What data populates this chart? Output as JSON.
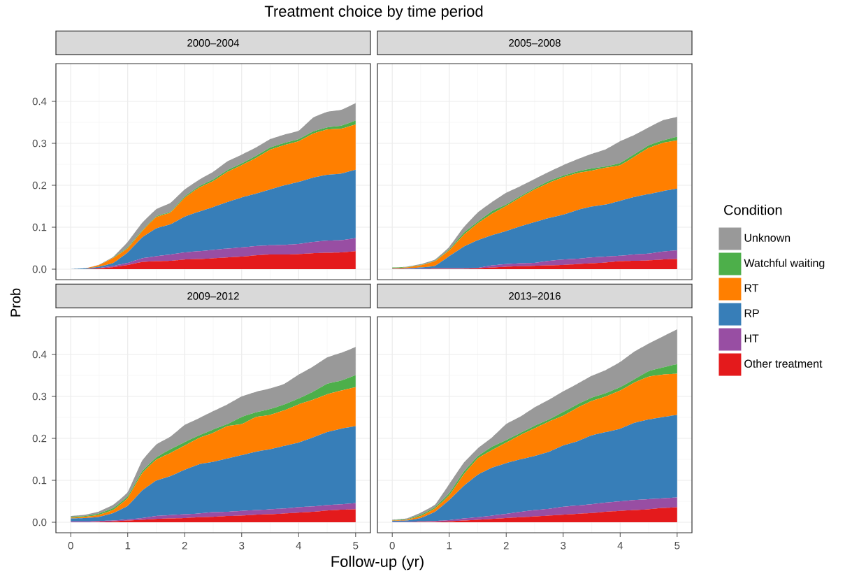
{
  "chart_data": [
    {
      "type": "area",
      "stacked": true,
      "title": "2000–2004",
      "annotations": [
        "Treatment choice by time period"
      ],
      "xlabel": "Follow-up (yr)",
      "ylabel": "Prob",
      "legend_title": "Condition",
      "legend": "right",
      "grid": true,
      "tick_labels": "y",
      "xlim": [
        -0.26,
        5.26
      ],
      "ylim": [
        -0.025,
        0.49
      ],
      "xticks": [
        0,
        1,
        2,
        3,
        4,
        5
      ],
      "yticks": [
        {
          "value": 0,
          "label": "0.0"
        },
        {
          "value": 0.1,
          "label": "0.1"
        },
        {
          "value": 0.2,
          "label": "0.2"
        },
        {
          "value": 0.3,
          "label": "0.3"
        },
        {
          "value": 0.4,
          "label": "0.4"
        }
      ],
      "x": [
        0,
        0.25,
        0.5,
        0.75,
        1,
        1.25,
        1.5,
        1.75,
        2,
        2.25,
        2.5,
        2.75,
        3,
        3.25,
        3.5,
        3.75,
        4,
        4.25,
        4.5,
        4.75,
        5
      ],
      "series": [
        {
          "name": "Other treatment",
          "color": "#e41a1c",
          "values": [
            0,
            0,
            0.002,
            0.005,
            0.01,
            0.017,
            0.019,
            0.02,
            0.023,
            0.024,
            0.026,
            0.028,
            0.03,
            0.033,
            0.035,
            0.035,
            0.036,
            0.038,
            0.039,
            0.04,
            0.043
          ]
        },
        {
          "name": "HT",
          "color": "#984ea3",
          "values": [
            0,
            0,
            0.001,
            0.003,
            0.005,
            0.009,
            0.012,
            0.015,
            0.017,
            0.019,
            0.02,
            0.021,
            0.022,
            0.022,
            0.022,
            0.023,
            0.024,
            0.027,
            0.029,
            0.029,
            0.031
          ]
        },
        {
          "name": "RP",
          "color": "#377eb8",
          "values": [
            0,
            0.002,
            0.003,
            0.007,
            0.025,
            0.049,
            0.066,
            0.072,
            0.085,
            0.094,
            0.102,
            0.111,
            0.119,
            0.125,
            0.133,
            0.142,
            0.148,
            0.153,
            0.157,
            0.159,
            0.163
          ]
        },
        {
          "name": "RT",
          "color": "#ff7f00",
          "values": [
            0,
            0,
            0.004,
            0.012,
            0.01,
            0.015,
            0.027,
            0.028,
            0.045,
            0.057,
            0.062,
            0.072,
            0.077,
            0.085,
            0.095,
            0.096,
            0.097,
            0.105,
            0.108,
            0.107,
            0.108
          ]
        },
        {
          "name": "Watchful waiting",
          "color": "#4daf4a",
          "values": [
            0,
            0,
            0,
            0.001,
            0.002,
            0.002,
            0.002,
            0.002,
            0.003,
            0.003,
            0.004,
            0.004,
            0.004,
            0.005,
            0.005,
            0.005,
            0.005,
            0.005,
            0.005,
            0.007,
            0.009
          ]
        },
        {
          "name": "Unknown",
          "color": "#999999",
          "values": [
            0,
            0,
            0.001,
            0.002,
            0.013,
            0.018,
            0.017,
            0.021,
            0.017,
            0.016,
            0.018,
            0.021,
            0.021,
            0.02,
            0.02,
            0.02,
            0.02,
            0.033,
            0.037,
            0.038,
            0.042
          ]
        }
      ]
    },
    {
      "type": "area",
      "stacked": true,
      "title": "2005–2008",
      "grid": true,
      "tick_labels": false,
      "xlim": [
        -0.26,
        5.26
      ],
      "ylim": [
        -0.025,
        0.49
      ],
      "xticks": [
        0,
        1,
        2,
        3,
        4,
        5
      ],
      "yticks": [
        {
          "value": 0,
          "label": null
        },
        {
          "value": 0.1,
          "label": null
        },
        {
          "value": 0.2,
          "label": null
        },
        {
          "value": 0.3,
          "label": null
        },
        {
          "value": 0.4,
          "label": null
        }
      ],
      "x": [
        0,
        0.25,
        0.5,
        0.75,
        1,
        1.25,
        1.5,
        1.75,
        2,
        2.25,
        2.5,
        2.75,
        3,
        3.25,
        3.5,
        3.75,
        4,
        4.25,
        4.5,
        4.75,
        5
      ],
      "series": [
        {
          "color": "#e41a1c",
          "values": [
            0,
            0,
            0,
            0.001,
            0.001,
            0.001,
            0.002,
            0.004,
            0.006,
            0.007,
            0.008,
            0.009,
            0.01,
            0.012,
            0.014,
            0.016,
            0.019,
            0.02,
            0.021,
            0.023,
            0.024
          ]
        },
        {
          "color": "#984ea3",
          "values": [
            0.001,
            0.001,
            0.001,
            0.001,
            0.001,
            0.001,
            0.001,
            0.005,
            0.006,
            0.007,
            0.007,
            0.011,
            0.013,
            0.013,
            0.014,
            0.014,
            0.013,
            0.015,
            0.016,
            0.019,
            0.021
          ]
        },
        {
          "color": "#377eb8",
          "values": [
            0,
            0.001,
            0.003,
            0.006,
            0.029,
            0.051,
            0.066,
            0.072,
            0.079,
            0.088,
            0.097,
            0.102,
            0.107,
            0.116,
            0.121,
            0.124,
            0.131,
            0.137,
            0.142,
            0.144,
            0.147
          ]
        },
        {
          "color": "#ff7f00",
          "values": [
            0.001,
            0.002,
            0.005,
            0.011,
            0.014,
            0.028,
            0.04,
            0.051,
            0.06,
            0.069,
            0.078,
            0.084,
            0.089,
            0.088,
            0.086,
            0.088,
            0.085,
            0.096,
            0.11,
            0.115,
            0.115
          ]
        },
        {
          "color": "#4daf4a",
          "values": [
            0.002,
            0.001,
            0.001,
            0.001,
            0.002,
            0.005,
            0.004,
            0.006,
            0.003,
            0.003,
            0.003,
            0.004,
            0.004,
            0.004,
            0.005,
            0.003,
            0.005,
            0.006,
            0.006,
            0.006,
            0.009
          ]
        },
        {
          "color": "#999999",
          "values": [
            0,
            0.001,
            0.002,
            0.003,
            0.006,
            0.013,
            0.022,
            0.022,
            0.028,
            0.024,
            0.022,
            0.022,
            0.025,
            0.029,
            0.035,
            0.041,
            0.052,
            0.046,
            0.043,
            0.048,
            0.047
          ]
        }
      ]
    },
    {
      "type": "area",
      "stacked": true,
      "title": "2009–2012",
      "grid": true,
      "xlim": [
        -0.26,
        5.26
      ],
      "ylim": [
        -0.025,
        0.49
      ],
      "xticks": [
        0,
        1,
        2,
        3,
        4,
        5
      ],
      "yticks": [
        {
          "value": 0,
          "label": "0.0"
        },
        {
          "value": 0.1,
          "label": "0.1"
        },
        {
          "value": 0.2,
          "label": "0.2"
        },
        {
          "value": 0.3,
          "label": "0.3"
        },
        {
          "value": 0.4,
          "label": "0.4"
        }
      ],
      "x": [
        0,
        0.25,
        0.5,
        0.75,
        1,
        1.25,
        1.5,
        1.75,
        2,
        2.25,
        2.5,
        2.75,
        3,
        3.25,
        3.5,
        3.75,
        4,
        4.25,
        4.5,
        4.75,
        5
      ],
      "series": [
        {
          "color": "#e41a1c",
          "values": [
            0,
            0,
            0.001,
            0.002,
            0.004,
            0.006,
            0.008,
            0.009,
            0.01,
            0.012,
            0.013,
            0.015,
            0.016,
            0.018,
            0.019,
            0.021,
            0.023,
            0.025,
            0.028,
            0.03,
            0.031
          ]
        },
        {
          "color": "#984ea3",
          "values": [
            0.002,
            0.002,
            0.002,
            0.002,
            0.003,
            0.004,
            0.007,
            0.008,
            0.009,
            0.009,
            0.011,
            0.01,
            0.011,
            0.011,
            0.012,
            0.012,
            0.013,
            0.013,
            0.013,
            0.013,
            0.015
          ]
        },
        {
          "color": "#377eb8",
          "values": [
            0.007,
            0.008,
            0.01,
            0.018,
            0.032,
            0.065,
            0.084,
            0.093,
            0.106,
            0.117,
            0.12,
            0.127,
            0.133,
            0.139,
            0.143,
            0.149,
            0.154,
            0.164,
            0.174,
            0.18,
            0.183
          ]
        },
        {
          "color": "#ff7f00",
          "values": [
            0.002,
            0.003,
            0.005,
            0.008,
            0.019,
            0.041,
            0.05,
            0.055,
            0.058,
            0.063,
            0.069,
            0.077,
            0.074,
            0.083,
            0.082,
            0.085,
            0.091,
            0.09,
            0.09,
            0.091,
            0.093
          ]
        },
        {
          "color": "#4daf4a",
          "values": [
            0.002,
            0.002,
            0.003,
            0.004,
            0.004,
            0.005,
            0.005,
            0.009,
            0.008,
            0.006,
            0.008,
            0.005,
            0.017,
            0.011,
            0.014,
            0.014,
            0.014,
            0.019,
            0.025,
            0.024,
            0.029
          ]
        },
        {
          "color": "#999999",
          "values": [
            0.002,
            0.003,
            0.005,
            0.008,
            0.01,
            0.025,
            0.031,
            0.03,
            0.041,
            0.041,
            0.044,
            0.047,
            0.049,
            0.049,
            0.049,
            0.049,
            0.057,
            0.06,
            0.063,
            0.066,
            0.067
          ]
        }
      ]
    },
    {
      "type": "area",
      "stacked": true,
      "title": "2013–2016",
      "grid": true,
      "tick_labels": "x",
      "xlim": [
        -0.26,
        5.26
      ],
      "ylim": [
        -0.025,
        0.49
      ],
      "xticks": [
        0,
        1,
        2,
        3,
        4,
        5
      ],
      "yticks": [
        {
          "value": 0,
          "label": null
        },
        {
          "value": 0.1,
          "label": null
        },
        {
          "value": 0.2,
          "label": null
        },
        {
          "value": 0.3,
          "label": null
        },
        {
          "value": 0.4,
          "label": null
        }
      ],
      "x": [
        0,
        0.25,
        0.5,
        0.75,
        1,
        1.25,
        1.5,
        1.75,
        2,
        2.25,
        2.5,
        2.75,
        3,
        3.25,
        3.5,
        3.75,
        4,
        4.25,
        4.5,
        4.75,
        5
      ],
      "series": [
        {
          "color": "#e41a1c",
          "values": [
            0,
            0,
            0.001,
            0.001,
            0.002,
            0.004,
            0.006,
            0.008,
            0.01,
            0.012,
            0.014,
            0.016,
            0.018,
            0.02,
            0.022,
            0.025,
            0.027,
            0.029,
            0.031,
            0.034,
            0.036
          ]
        },
        {
          "color": "#984ea3",
          "values": [
            0.001,
            0.001,
            0.001,
            0.002,
            0.003,
            0.005,
            0.006,
            0.008,
            0.01,
            0.013,
            0.015,
            0.016,
            0.019,
            0.02,
            0.021,
            0.022,
            0.023,
            0.024,
            0.024,
            0.023,
            0.023
          ]
        },
        {
          "color": "#377eb8",
          "values": [
            0.002,
            0.003,
            0.008,
            0.022,
            0.048,
            0.077,
            0.101,
            0.114,
            0.121,
            0.125,
            0.129,
            0.136,
            0.146,
            0.153,
            0.164,
            0.168,
            0.173,
            0.184,
            0.19,
            0.194,
            0.197
          ]
        },
        {
          "color": "#ff7f00",
          "values": [
            0.001,
            0.002,
            0.005,
            0.008,
            0.011,
            0.027,
            0.039,
            0.042,
            0.049,
            0.058,
            0.066,
            0.072,
            0.071,
            0.08,
            0.082,
            0.085,
            0.091,
            0.096,
            0.102,
            0.101,
            0.098
          ]
        },
        {
          "color": "#4daf4a",
          "values": [
            0.001,
            0.001,
            0.003,
            0.003,
            0.005,
            0.006,
            0.005,
            0.008,
            0.006,
            0.005,
            0.006,
            0.005,
            0.009,
            0.008,
            0.008,
            0.008,
            0.008,
            0.008,
            0.013,
            0.017,
            0.023
          ]
        },
        {
          "color": "#999999",
          "values": [
            0.001,
            0.002,
            0.005,
            0.006,
            0.022,
            0.022,
            0.019,
            0.022,
            0.038,
            0.039,
            0.044,
            0.047,
            0.049,
            0.049,
            0.052,
            0.055,
            0.06,
            0.066,
            0.066,
            0.074,
            0.083
          ]
        }
      ]
    }
  ]
}
